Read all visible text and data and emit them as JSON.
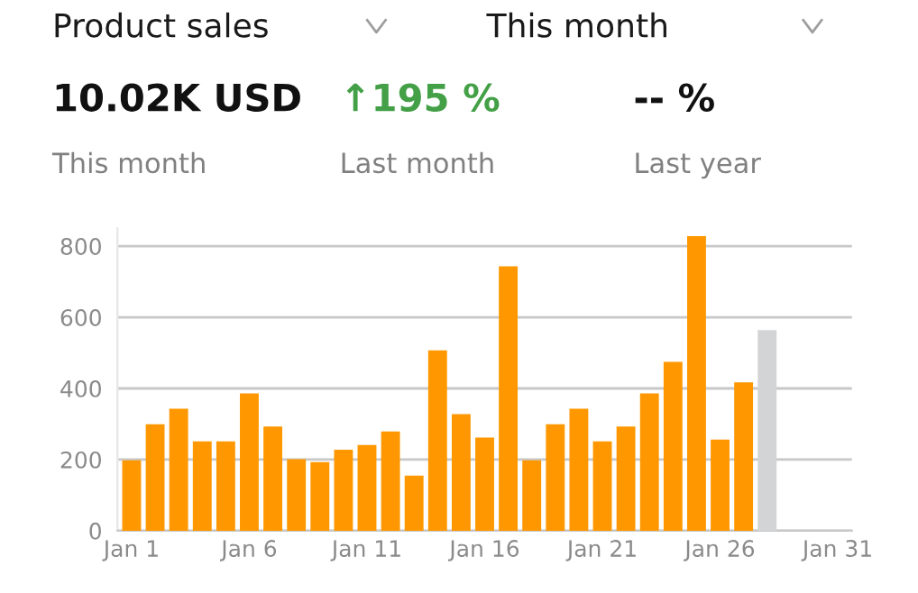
{
  "chart_data": [
    {
      "type": "other",
      "annotations": [
        "Product sales",
        "This month",
        "10.02K USD",
        "↑195 %",
        "-- %",
        "This month",
        "Last month",
        "Last year"
      ],
      "colors": [
        "#1a1a1a",
        "#1a1a1a",
        "#111111",
        "#43a047",
        "#111111",
        "#808080",
        "#808080",
        "#808080"
      ]
    },
    {
      "type": "bar",
      "categories": [
        "Jan 1",
        null,
        null,
        null,
        null,
        "Jan 6",
        null,
        null,
        null,
        null,
        "Jan 11",
        null,
        null,
        null,
        null,
        "Jan 16",
        null,
        null,
        null,
        null,
        "Jan 21",
        null,
        null,
        null,
        null,
        "Jan 26",
        null,
        null,
        null,
        null,
        "Jan 31"
      ],
      "values": [
        198,
        299,
        343,
        251,
        251,
        386,
        293,
        201,
        193,
        228,
        241,
        279,
        155,
        507,
        328,
        262,
        743,
        198,
        299,
        343,
        251,
        293,
        386,
        475,
        828,
        256,
        417,
        564,
        null,
        null,
        null
      ],
      "colors": [
        "#ff9800",
        "#ff9800",
        "#ff9800",
        "#ff9800",
        "#ff9800",
        "#ff9800",
        "#ff9800",
        "#ff9800",
        "#ff9800",
        "#ff9800",
        "#ff9800",
        "#ff9800",
        "#ff9800",
        "#ff9800",
        "#ff9800",
        "#ff9800",
        "#ff9800",
        "#ff9800",
        "#ff9800",
        "#ff9800",
        "#ff9800",
        "#ff9800",
        "#ff9800",
        "#ff9800",
        "#ff9800",
        "#ff9800",
        "#ff9800",
        "#d3d4d6",
        "#ff9800",
        "#ff9800",
        "#ff9800"
      ],
      "ylim": [
        0,
        850
      ],
      "yticks": [
        0,
        200,
        400,
        600,
        800
      ],
      "grid": "y"
    }
  ]
}
